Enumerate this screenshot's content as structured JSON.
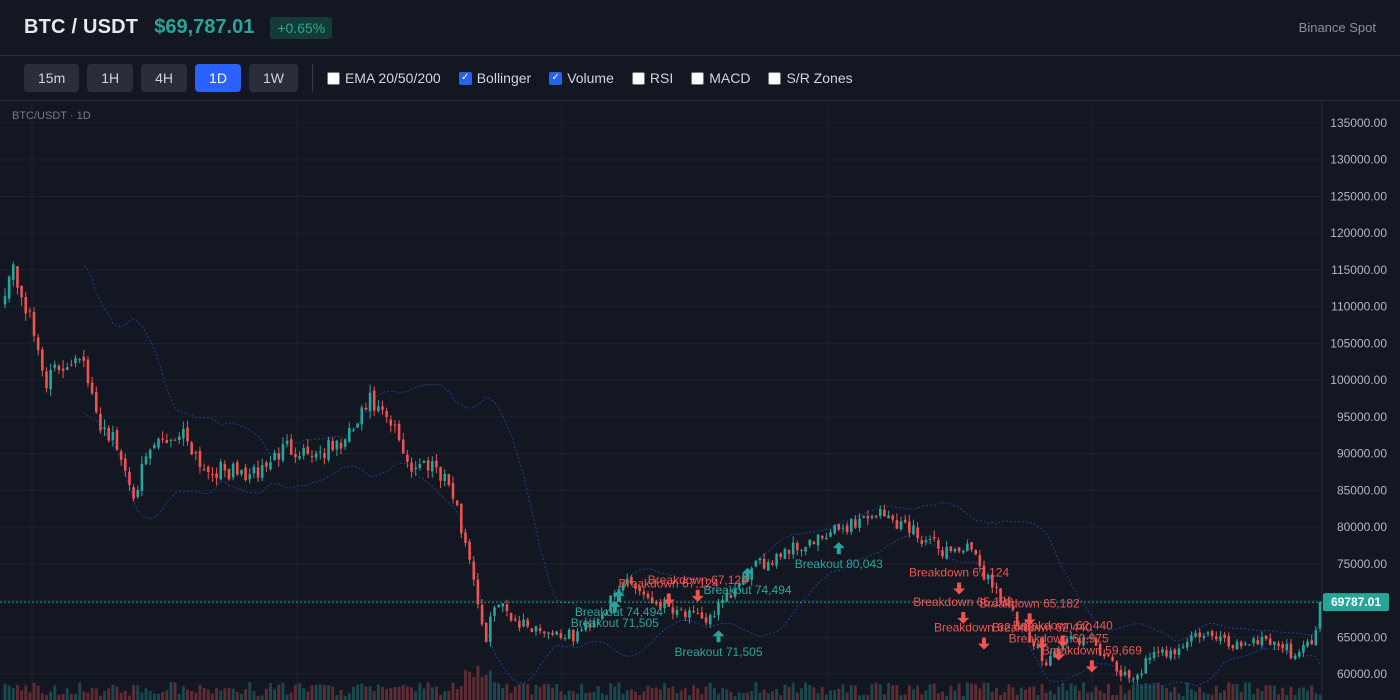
{
  "header": {
    "symbol": "BTC / USDT",
    "price": "$69,787.01",
    "change": "+0.65%",
    "exchange": "Binance Spot"
  },
  "toolbar": {
    "timeframes": [
      {
        "label": "15m",
        "active": false
      },
      {
        "label": "1H",
        "active": false
      },
      {
        "label": "4H",
        "active": false
      },
      {
        "label": "1D",
        "active": true
      },
      {
        "label": "1W",
        "active": false
      }
    ],
    "indicators": [
      {
        "label": "EMA 20/50/200",
        "checked": false
      },
      {
        "label": "Bollinger",
        "checked": true
      },
      {
        "label": "Volume",
        "checked": true
      },
      {
        "label": "RSI",
        "checked": false
      },
      {
        "label": "MACD",
        "checked": false
      },
      {
        "label": "S/R Zones",
        "checked": false
      }
    ]
  },
  "chart_label": "BTC/USDT · 1D",
  "colors": {
    "up": "#26a69a",
    "down": "#ef5350",
    "background": "#131722",
    "grid": "#1e222d",
    "bollinger": "#2962ff",
    "price_line": "#26a69a"
  },
  "chart_data": {
    "type": "candlestick",
    "ylim": [
      57000,
      137000
    ],
    "y_ticks": [
      "135000.00",
      "130000.00",
      "125000.00",
      "120000.00",
      "115000.00",
      "110000.00",
      "105000.00",
      "100000.00",
      "95000.00",
      "90000.00",
      "85000.00",
      "80000.00",
      "75000.00",
      "70000.00",
      "65000.00",
      "60000.00"
    ],
    "current_price": 69787.01,
    "current_price_label": "69787.01",
    "anchors": [
      {
        "i": 0,
        "p": 113000
      },
      {
        "i": 2,
        "p": 115000
      },
      {
        "i": 5,
        "p": 110000
      },
      {
        "i": 10,
        "p": 100000
      },
      {
        "i": 18,
        "p": 104000
      },
      {
        "i": 22,
        "p": 95000
      },
      {
        "i": 26,
        "p": 92000
      },
      {
        "i": 31,
        "p": 85000
      },
      {
        "i": 36,
        "p": 91000
      },
      {
        "i": 43,
        "p": 93000
      },
      {
        "i": 48,
        "p": 88000
      },
      {
        "i": 60,
        "p": 87000
      },
      {
        "i": 68,
        "p": 91000
      },
      {
        "i": 75,
        "p": 90000
      },
      {
        "i": 82,
        "p": 91500
      },
      {
        "i": 88,
        "p": 97000
      },
      {
        "i": 94,
        "p": 93000
      },
      {
        "i": 98,
        "p": 88000
      },
      {
        "i": 103,
        "p": 89000
      },
      {
        "i": 107,
        "p": 86000
      },
      {
        "i": 112,
        "p": 76000
      },
      {
        "i": 116,
        "p": 64000
      },
      {
        "i": 118,
        "p": 70000
      },
      {
        "i": 124,
        "p": 67000
      },
      {
        "i": 130,
        "p": 66000
      },
      {
        "i": 137,
        "p": 65000
      },
      {
        "i": 145,
        "p": 69000
      },
      {
        "i": 150,
        "p": 73000
      },
      {
        "i": 156,
        "p": 70000
      },
      {
        "i": 162,
        "p": 69000
      },
      {
        "i": 168,
        "p": 67000
      },
      {
        "i": 174,
        "p": 70000
      },
      {
        "i": 180,
        "p": 74000
      },
      {
        "i": 188,
        "p": 77000
      },
      {
        "i": 196,
        "p": 78000
      },
      {
        "i": 202,
        "p": 80000
      },
      {
        "i": 210,
        "p": 82000
      },
      {
        "i": 218,
        "p": 80000
      },
      {
        "i": 225,
        "p": 77000
      },
      {
        "i": 232,
        "p": 77000
      },
      {
        "i": 237,
        "p": 73000
      },
      {
        "i": 241,
        "p": 70000
      },
      {
        "i": 246,
        "p": 65000
      },
      {
        "i": 251,
        "p": 62000
      },
      {
        "i": 257,
        "p": 65000
      },
      {
        "i": 263,
        "p": 64000
      },
      {
        "i": 267,
        "p": 61000
      },
      {
        "i": 271,
        "p": 59000
      },
      {
        "i": 276,
        "p": 62000
      },
      {
        "i": 282,
        "p": 63500
      },
      {
        "i": 288,
        "p": 65500
      },
      {
        "i": 296,
        "p": 64000
      },
      {
        "i": 304,
        "p": 65000
      },
      {
        "i": 310,
        "p": 63000
      },
      {
        "i": 315,
        "p": 64000
      },
      {
        "i": 317,
        "p": 69787
      }
    ],
    "n_candles": 318,
    "annotations": [
      {
        "text": "Breakout 74,494",
        "type": "up",
        "i": 148,
        "price": 72000
      },
      {
        "text": "Breakout 71,505",
        "type": "up",
        "i": 147,
        "price": 70500
      },
      {
        "text": "Breakout 71,505",
        "type": "up",
        "i": 172,
        "price": 66500
      },
      {
        "text": "Breakout 74,494",
        "type": "up",
        "i": 179,
        "price": 75000
      },
      {
        "text": "Breakout 80,043",
        "type": "up",
        "i": 201,
        "price": 78500
      },
      {
        "text": "Breakdown 67,124",
        "type": "down",
        "i": 160,
        "price": 71500
      },
      {
        "text": "Breakdown 67,124",
        "type": "down",
        "i": 167,
        "price": 72000
      },
      {
        "text": "Breakdown 67,124",
        "type": "down",
        "i": 230,
        "price": 73000
      },
      {
        "text": "Breakdown 65,182",
        "type": "down",
        "i": 231,
        "price": 69000
      },
      {
        "text": "Breakdown 65,182",
        "type": "down",
        "i": 247,
        "price": 68800
      },
      {
        "text": "Breakdown 62,440",
        "type": "down",
        "i": 236,
        "price": 65500
      },
      {
        "text": "Breakdown 62,440",
        "type": "down",
        "i": 250,
        "price": 65500
      },
      {
        "text": "Breakdown 62,440",
        "type": "down",
        "i": 255,
        "price": 65800
      },
      {
        "text": "Breakdown 60,975",
        "type": "down",
        "i": 254,
        "price": 64000
      },
      {
        "text": "Breakdown 59,669",
        "type": "down",
        "i": 262,
        "price": 62400
      }
    ]
  }
}
